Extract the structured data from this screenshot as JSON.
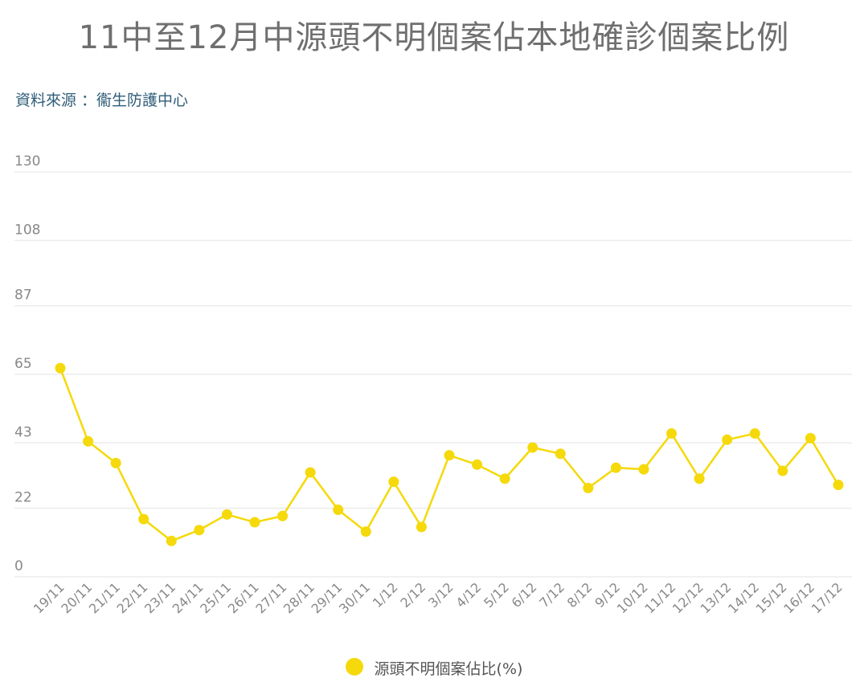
{
  "colors": {
    "series": "#f5d90a",
    "grid": "#e3e3e3",
    "tick": "#888888"
  },
  "chart_data": {
    "type": "line",
    "title": "11中至12月中源頭不明個案佔本地確診個案比例",
    "source": "資料來源 ：衞生防護中心",
    "yticks": [
      "0",
      "22",
      "43",
      "65",
      "87",
      "108",
      "130"
    ],
    "ylim": [
      0,
      130
    ],
    "grid": true,
    "legend_position": "bottom",
    "categories": [
      "19/11",
      "20/11",
      "21/11",
      "22/11",
      "23/11",
      "24/11",
      "25/11",
      "26/11",
      "27/11",
      "28/11",
      "29/11",
      "30/11",
      "1/12",
      "2/12",
      "3/12",
      "4/12",
      "5/12",
      "6/12",
      "7/12",
      "8/12",
      "9/12",
      "10/12",
      "11/12",
      "12/12",
      "13/12",
      "14/12",
      "15/12",
      "16/12",
      "17/12"
    ],
    "series": [
      {
        "name": "源頭不明個案佔比(%)",
        "values": [
          67,
          43.5,
          36.5,
          18.5,
          11.5,
          15,
          20,
          17.5,
          19.5,
          33.5,
          21.5,
          14.5,
          30.5,
          16,
          39,
          36,
          31.5,
          41.5,
          39.5,
          28.5,
          35,
          34.5,
          46,
          31.5,
          44,
          46,
          34,
          44.5,
          29.5
        ]
      }
    ]
  }
}
